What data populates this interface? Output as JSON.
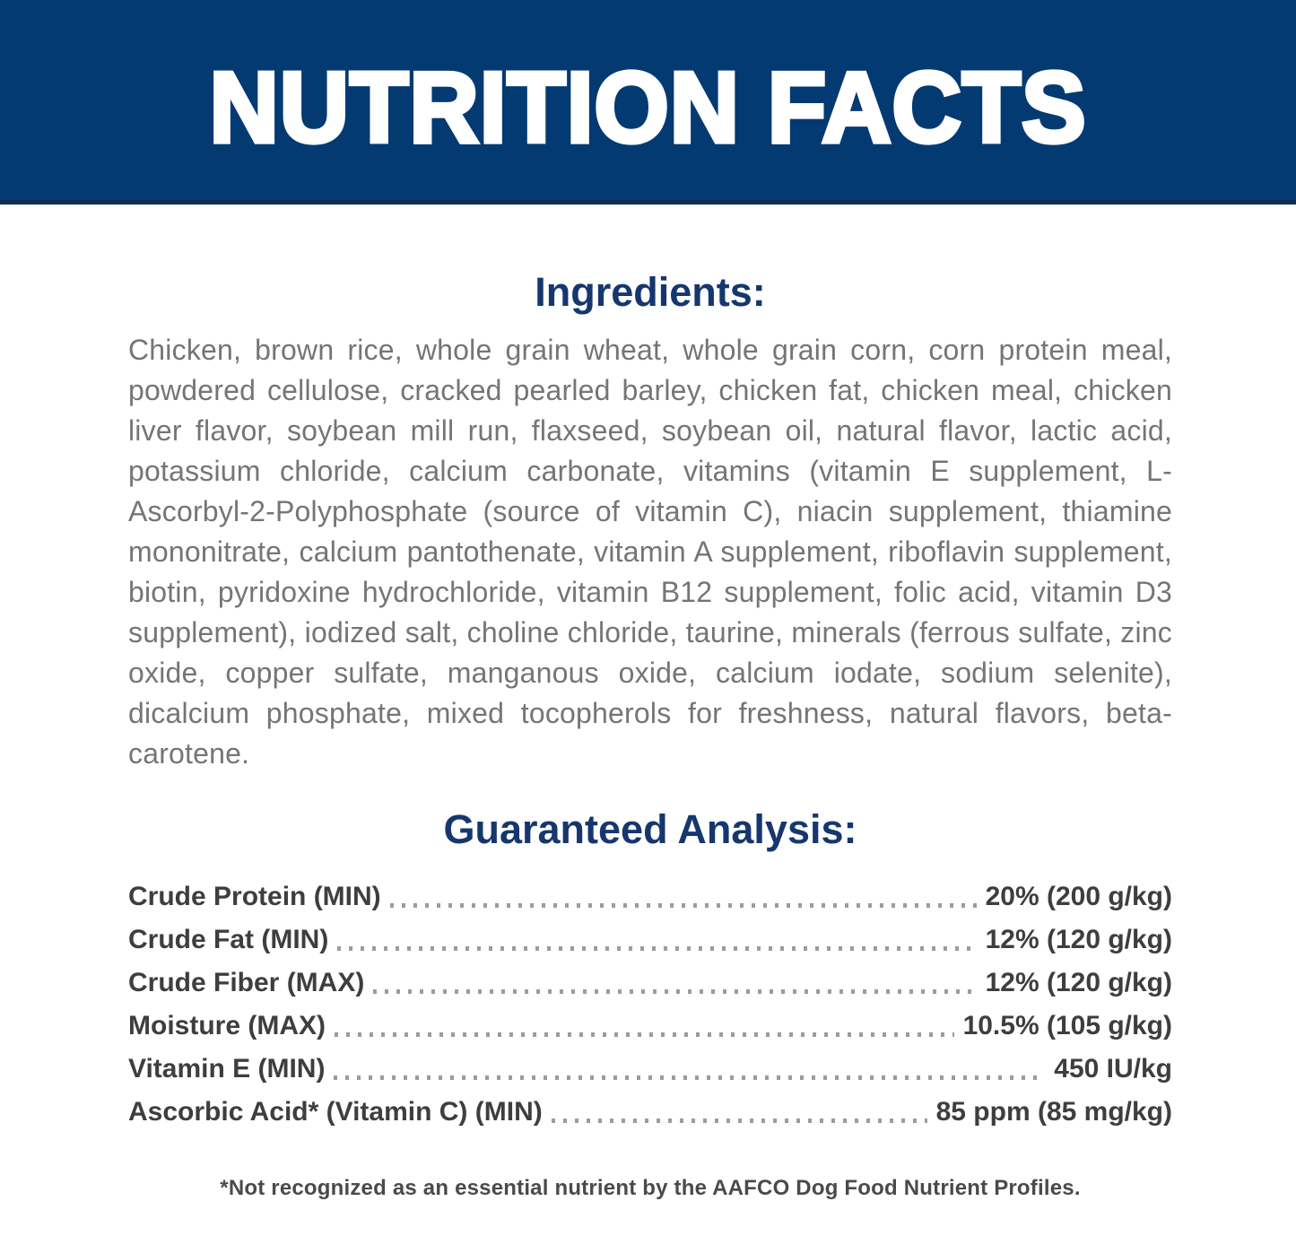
{
  "banner": {
    "title": "NUTRITION FACTS"
  },
  "ingredients": {
    "heading": "Ingredients:",
    "body": "Chicken, brown rice, whole grain wheat, whole grain corn, corn protein meal, powdered cellulose, cracked pearled barley, chicken fat, chicken meal, chicken liver flavor, soybean mill run, flaxseed, soybean oil, natural flavor, lactic acid, potassium chloride, calcium carbonate, vitamins (vitamin E supplement, L-Ascorbyl-2-Polyphosphate (source of vitamin C), niacin supplement, thiamine mononitrate, calcium pantothenate, vitamin A supplement, riboflavin supplement, biotin, pyridoxine hydrochloride, vitamin B12 supplement, folic acid, vitamin D3 supplement), iodized salt, choline chloride, taurine, minerals (ferrous sulfate, zinc oxide, copper sulfate, manganous oxide, calcium iodate, sodium selenite), dicalcium phosphate, mixed tocopherols for freshness, natural flavors, beta-carotene."
  },
  "guaranteed_analysis": {
    "heading": "Guaranteed Analysis:",
    "rows": [
      {
        "label": "Crude Protein (MIN)",
        "value": "20% (200 g/kg)"
      },
      {
        "label": "Crude Fat (MIN)",
        "value": "12% (120 g/kg)"
      },
      {
        "label": "Crude Fiber (MAX)",
        "value": "12% (120 g/kg)"
      },
      {
        "label": "Moisture (MAX)",
        "value": "10.5% (105 g/kg)"
      },
      {
        "label": "Vitamin E (MIN)",
        "value": "450 IU/kg"
      },
      {
        "label": "Ascorbic Acid* (Vitamin C) (MIN)",
        "value": "85 ppm (85 mg/kg)"
      }
    ]
  },
  "footnote": "*Not recognized as an essential nutrient by the AAFCO Dog Food Nutrient Profiles.",
  "colors": {
    "banner_bg": "#043A72",
    "banner_edge": "#0F2B52",
    "heading_navy": "#16376E",
    "body_gray": "#757575",
    "analysis_text": "#3E3E3E",
    "dot_gray": "#9C9C9C",
    "footnote_gray": "#4A4A4A"
  }
}
